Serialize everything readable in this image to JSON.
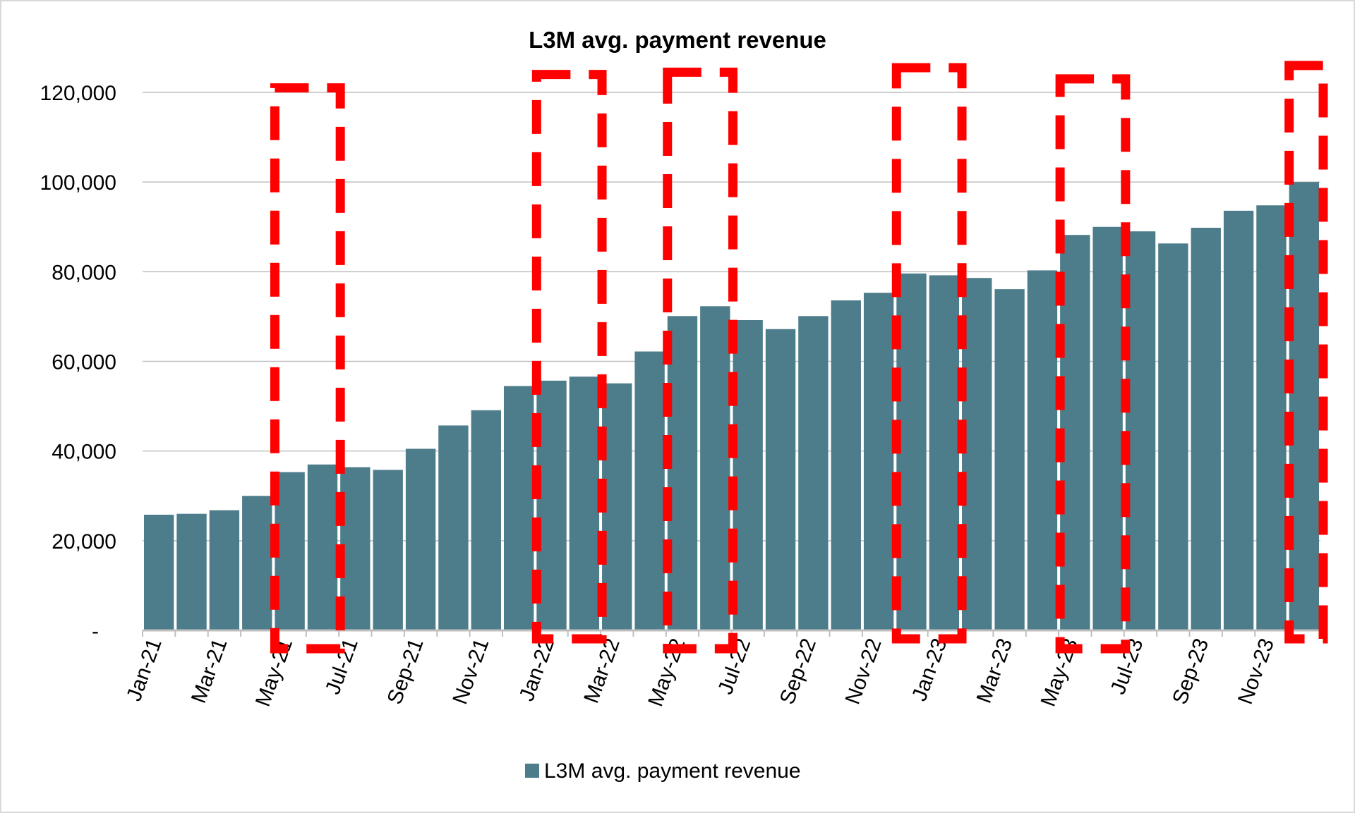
{
  "chart_data": {
    "type": "bar",
    "title": "L3M avg. payment revenue",
    "xlabel": "",
    "ylabel": "",
    "ylim": [
      0,
      120000
    ],
    "yticks": [
      0,
      20000,
      40000,
      60000,
      80000,
      100000,
      120000
    ],
    "ytick_labels": [
      "-",
      "20,000",
      "40,000",
      "60,000",
      "80,000",
      "100,000",
      "120,000"
    ],
    "grid": true,
    "legend": "bottom",
    "categories": [
      "Jan-21",
      "Feb-21",
      "Mar-21",
      "Apr-21",
      "May-21",
      "Jun-21",
      "Jul-21",
      "Aug-21",
      "Sep-21",
      "Oct-21",
      "Nov-21",
      "Dec-21",
      "Jan-22",
      "Feb-22",
      "Mar-22",
      "Apr-22",
      "May-22",
      "Jun-22",
      "Jul-22",
      "Aug-22",
      "Sep-22",
      "Oct-22",
      "Nov-22",
      "Dec-22",
      "Jan-23",
      "Feb-23",
      "Mar-23",
      "Apr-23",
      "May-23",
      "Jun-23",
      "Jul-23",
      "Aug-23",
      "Sep-23",
      "Oct-23",
      "Nov-23",
      "Dec-23"
    ],
    "xtick_labels": [
      "Jan-21",
      "Mar-21",
      "May-21",
      "Jul-21",
      "Sep-21",
      "Nov-21",
      "Jan-22",
      "Mar-22",
      "May-22",
      "Jul-22",
      "Sep-22",
      "Nov-22",
      "Jan-23",
      "Mar-23",
      "May-23",
      "Jul-23",
      "Sep-23",
      "Nov-23"
    ],
    "series": [
      {
        "name": "L3M avg. payment revenue",
        "color": "#4d7c8a",
        "values": [
          25800,
          26000,
          26800,
          30000,
          35300,
          37000,
          36400,
          35800,
          40500,
          45700,
          49100,
          54500,
          55700,
          56600,
          55100,
          62200,
          70100,
          72300,
          69200,
          67200,
          70100,
          73600,
          75300,
          79600,
          79200,
          78600,
          76100,
          80300,
          88200,
          90000,
          89000,
          86300,
          89800,
          93600,
          94800,
          100000
        ]
      }
    ],
    "annotations": {
      "type": "red-dashed-box",
      "color": "#ff0000",
      "highlighted_ranges": [
        [
          "May-21",
          "Jun-21"
        ],
        [
          "Jan-22",
          "Feb-22"
        ],
        [
          "May-22",
          "Jun-22"
        ],
        [
          "Dec-22",
          "Jan-23"
        ],
        [
          "May-23",
          "Jun-23"
        ],
        [
          "Dec-23",
          "Dec-23"
        ]
      ]
    }
  }
}
